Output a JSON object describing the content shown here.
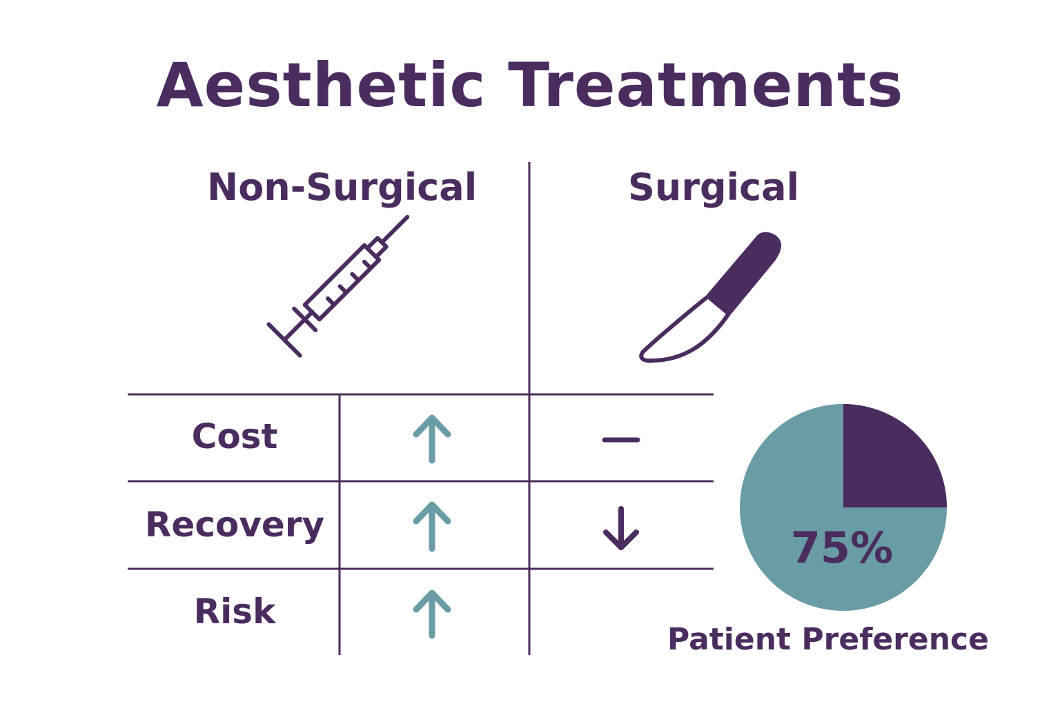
{
  "title": "Aesthetic Treatments",
  "columns": {
    "non_surgical": {
      "label": "Non-Surgical",
      "icon": "syringe-icon"
    },
    "surgical": {
      "label": "Surgical",
      "icon": "scalpel-icon"
    }
  },
  "rows": [
    {
      "label": "Cost",
      "non_surgical": "up-arrow-icon",
      "surgical": "dash-icon"
    },
    {
      "label": "Recovery",
      "non_surgical": "up-arrow-icon",
      "surgical": "down-arrow-icon"
    },
    {
      "label": "Risk",
      "non_surgical": "up-arrow-icon",
      "surgical": ""
    }
  ],
  "preference": {
    "percent_label": "75%",
    "value": 0.75,
    "caption": "Patient Preference"
  },
  "colors": {
    "primary": "#4a2c5e",
    "accent": "#6a9ca6",
    "background": "#ffffff"
  }
}
